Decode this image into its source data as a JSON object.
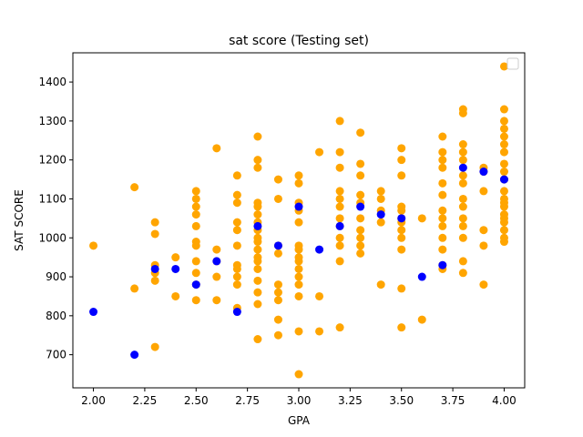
{
  "chart_data": {
    "type": "scatter",
    "title": "sat score (Testing set)",
    "xlabel": "GPA",
    "ylabel": "SAT SCORE",
    "xlim": [
      1.9,
      4.1
    ],
    "ylim": [
      615,
      1475
    ],
    "xticks": [
      "2.00",
      "2.25",
      "2.50",
      "2.75",
      "3.00",
      "3.25",
      "3.50",
      "3.75",
      "4.00"
    ],
    "yticks": [
      700,
      800,
      900,
      1000,
      1100,
      1200,
      1300,
      1400
    ],
    "grid": false,
    "legend": "top-right",
    "legend_entries": [],
    "colors": {
      "training": "#FFA500",
      "testing": "#0000FF"
    },
    "series": [
      {
        "color": "#FFA500",
        "points": [
          [
            2.0,
            980
          ],
          [
            2.2,
            1130
          ],
          [
            2.2,
            870
          ],
          [
            2.3,
            1040
          ],
          [
            2.3,
            1010
          ],
          [
            2.3,
            930
          ],
          [
            2.3,
            910
          ],
          [
            2.3,
            890
          ],
          [
            2.3,
            720
          ],
          [
            2.4,
            950
          ],
          [
            2.4,
            850
          ],
          [
            2.5,
            1120
          ],
          [
            2.5,
            1100
          ],
          [
            2.5,
            1080
          ],
          [
            2.5,
            1060
          ],
          [
            2.5,
            1030
          ],
          [
            2.5,
            990
          ],
          [
            2.5,
            980
          ],
          [
            2.5,
            940
          ],
          [
            2.5,
            910
          ],
          [
            2.5,
            880
          ],
          [
            2.5,
            840
          ],
          [
            2.6,
            1230
          ],
          [
            2.6,
            970
          ],
          [
            2.6,
            940
          ],
          [
            2.6,
            900
          ],
          [
            2.6,
            840
          ],
          [
            2.7,
            1160
          ],
          [
            2.7,
            1110
          ],
          [
            2.7,
            1090
          ],
          [
            2.7,
            1040
          ],
          [
            2.7,
            1020
          ],
          [
            2.7,
            980
          ],
          [
            2.7,
            930
          ],
          [
            2.7,
            920
          ],
          [
            2.7,
            900
          ],
          [
            2.7,
            880
          ],
          [
            2.7,
            820
          ],
          [
            2.8,
            1260
          ],
          [
            2.8,
            1200
          ],
          [
            2.8,
            1180
          ],
          [
            2.8,
            1090
          ],
          [
            2.8,
            1080
          ],
          [
            2.8,
            1060
          ],
          [
            2.8,
            1040
          ],
          [
            2.8,
            1020
          ],
          [
            2.8,
            1000
          ],
          [
            2.8,
            990
          ],
          [
            2.8,
            970
          ],
          [
            2.8,
            950
          ],
          [
            2.8,
            940
          ],
          [
            2.8,
            920
          ],
          [
            2.8,
            890
          ],
          [
            2.8,
            860
          ],
          [
            2.8,
            830
          ],
          [
            2.8,
            740
          ],
          [
            2.9,
            1150
          ],
          [
            2.9,
            1100
          ],
          [
            2.9,
            980
          ],
          [
            2.9,
            960
          ],
          [
            2.9,
            880
          ],
          [
            2.9,
            860
          ],
          [
            2.9,
            840
          ],
          [
            2.9,
            790
          ],
          [
            2.9,
            750
          ],
          [
            3.0,
            1160
          ],
          [
            3.0,
            1140
          ],
          [
            3.0,
            1090
          ],
          [
            3.0,
            1070
          ],
          [
            3.0,
            1040
          ],
          [
            3.0,
            980
          ],
          [
            3.0,
            970
          ],
          [
            3.0,
            950
          ],
          [
            3.0,
            940
          ],
          [
            3.0,
            920
          ],
          [
            3.0,
            900
          ],
          [
            3.0,
            880
          ],
          [
            3.0,
            850
          ],
          [
            3.0,
            760
          ],
          [
            3.0,
            650
          ],
          [
            3.1,
            1220
          ],
          [
            3.1,
            850
          ],
          [
            3.1,
            760
          ],
          [
            3.2,
            1300
          ],
          [
            3.2,
            1220
          ],
          [
            3.2,
            1180
          ],
          [
            3.2,
            1120
          ],
          [
            3.2,
            1100
          ],
          [
            3.2,
            1080
          ],
          [
            3.2,
            1050
          ],
          [
            3.2,
            1030
          ],
          [
            3.2,
            1000
          ],
          [
            3.2,
            980
          ],
          [
            3.2,
            940
          ],
          [
            3.2,
            770
          ],
          [
            3.3,
            1270
          ],
          [
            3.3,
            1190
          ],
          [
            3.3,
            1160
          ],
          [
            3.3,
            1110
          ],
          [
            3.3,
            1090
          ],
          [
            3.3,
            1050
          ],
          [
            3.3,
            1020
          ],
          [
            3.3,
            1000
          ],
          [
            3.3,
            980
          ],
          [
            3.3,
            960
          ],
          [
            3.4,
            1120
          ],
          [
            3.4,
            1100
          ],
          [
            3.4,
            1070
          ],
          [
            3.4,
            1040
          ],
          [
            3.4,
            880
          ],
          [
            3.5,
            1230
          ],
          [
            3.5,
            1200
          ],
          [
            3.5,
            1160
          ],
          [
            3.5,
            1080
          ],
          [
            3.5,
            1070
          ],
          [
            3.5,
            1050
          ],
          [
            3.5,
            1040
          ],
          [
            3.5,
            1020
          ],
          [
            3.5,
            1000
          ],
          [
            3.5,
            970
          ],
          [
            3.5,
            870
          ],
          [
            3.5,
            770
          ],
          [
            3.6,
            1050
          ],
          [
            3.6,
            790
          ],
          [
            3.7,
            1260
          ],
          [
            3.7,
            1220
          ],
          [
            3.7,
            1200
          ],
          [
            3.7,
            1180
          ],
          [
            3.7,
            1140
          ],
          [
            3.7,
            1110
          ],
          [
            3.7,
            1070
          ],
          [
            3.7,
            1050
          ],
          [
            3.7,
            1030
          ],
          [
            3.7,
            1000
          ],
          [
            3.7,
            970
          ],
          [
            3.7,
            930
          ],
          [
            3.7,
            920
          ],
          [
            3.8,
            1330
          ],
          [
            3.8,
            1320
          ],
          [
            3.8,
            1240
          ],
          [
            3.8,
            1220
          ],
          [
            3.8,
            1200
          ],
          [
            3.8,
            1160
          ],
          [
            3.8,
            1140
          ],
          [
            3.8,
            1100
          ],
          [
            3.8,
            1080
          ],
          [
            3.8,
            1050
          ],
          [
            3.8,
            1030
          ],
          [
            3.8,
            1000
          ],
          [
            3.8,
            940
          ],
          [
            3.8,
            910
          ],
          [
            3.9,
            1180
          ],
          [
            3.9,
            1170
          ],
          [
            3.9,
            1120
          ],
          [
            3.9,
            1020
          ],
          [
            3.9,
            980
          ],
          [
            3.9,
            880
          ],
          [
            4.0,
            1440
          ],
          [
            4.0,
            1330
          ],
          [
            4.0,
            1300
          ],
          [
            4.0,
            1280
          ],
          [
            4.0,
            1260
          ],
          [
            4.0,
            1240
          ],
          [
            4.0,
            1220
          ],
          [
            4.0,
            1190
          ],
          [
            4.0,
            1170
          ],
          [
            4.0,
            1150
          ],
          [
            4.0,
            1120
          ],
          [
            4.0,
            1100
          ],
          [
            4.0,
            1090
          ],
          [
            4.0,
            1080
          ],
          [
            4.0,
            1060
          ],
          [
            4.0,
            1050
          ],
          [
            4.0,
            1040
          ],
          [
            4.0,
            1020
          ],
          [
            4.0,
            1000
          ],
          [
            4.0,
            990
          ]
        ]
      },
      {
        "color": "#0000FF",
        "points": [
          [
            2.0,
            810
          ],
          [
            2.2,
            700
          ],
          [
            2.3,
            920
          ],
          [
            2.4,
            920
          ],
          [
            2.5,
            880
          ],
          [
            2.6,
            940
          ],
          [
            2.7,
            810
          ],
          [
            2.8,
            1030
          ],
          [
            2.9,
            980
          ],
          [
            3.0,
            1080
          ],
          [
            3.1,
            970
          ],
          [
            3.2,
            1030
          ],
          [
            3.3,
            1080
          ],
          [
            3.4,
            1060
          ],
          [
            3.5,
            1050
          ],
          [
            3.6,
            900
          ],
          [
            3.7,
            930
          ],
          [
            3.8,
            1180
          ],
          [
            3.9,
            1170
          ],
          [
            4.0,
            1150
          ]
        ]
      }
    ]
  }
}
